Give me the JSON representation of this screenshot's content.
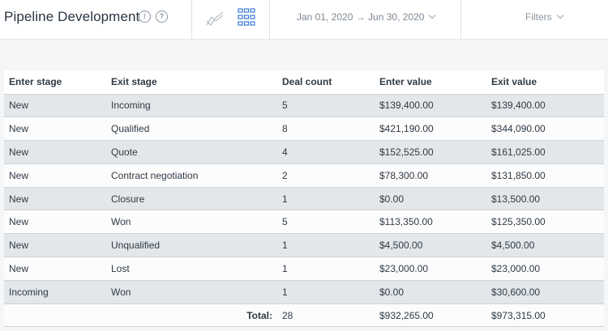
{
  "header": {
    "title": "Pipeline Development",
    "info_icon": "info-icon",
    "help_icon": "help-icon",
    "date_range": "Jan 01, 2020 → Jun 30, 2020",
    "filters_label": "Filters",
    "accent_color": "#3a7bd5"
  },
  "table": {
    "columns": [
      "Enter stage",
      "Exit stage",
      "Deal count",
      "Enter value",
      "Exit value"
    ],
    "rows": [
      [
        "New",
        "Incoming",
        "5",
        "$139,400.00",
        "$139,400.00"
      ],
      [
        "New",
        "Qualified",
        "8",
        "$421,190.00",
        "$344,090.00"
      ],
      [
        "New",
        "Quote",
        "4",
        "$152,525.00",
        "$161,025.00"
      ],
      [
        "New",
        "Contract negotiation",
        "2",
        "$78,300.00",
        "$131,850.00"
      ],
      [
        "New",
        "Closure",
        "1",
        "$0.00",
        "$13,500.00"
      ],
      [
        "New",
        "Won",
        "5",
        "$113,350.00",
        "$125,350.00"
      ],
      [
        "New",
        "Unqualified",
        "1",
        "$4,500.00",
        "$4,500.00"
      ],
      [
        "New",
        "Lost",
        "1",
        "$23,000.00",
        "$23,000.00"
      ],
      [
        "Incoming",
        "Won",
        "1",
        "$0.00",
        "$30,600.00"
      ]
    ],
    "total": {
      "label": "Total:",
      "deal_count": "28",
      "enter_value": "$932,265.00",
      "exit_value": "$973,315.00"
    }
  }
}
